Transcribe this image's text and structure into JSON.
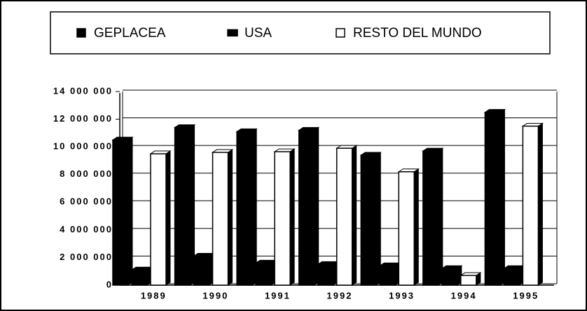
{
  "chart_data": {
    "type": "bar",
    "categories": [
      "1989",
      "1990",
      "1991",
      "1992",
      "1993",
      "1994",
      "1995"
    ],
    "series": [
      {
        "name": "GEPLACEA",
        "color": "#000000",
        "values": [
          10500000,
          11400000,
          11100000,
          11200000,
          9400000,
          9700000,
          12500000
        ]
      },
      {
        "name": "USA",
        "color": "#000000",
        "values": [
          1100000,
          2100000,
          1600000,
          1500000,
          1400000,
          1200000,
          1200000
        ]
      },
      {
        "name": "RESTO DEL MUNDO",
        "color": "#ffffff",
        "values": [
          9500000,
          9600000,
          9650000,
          9900000,
          8200000,
          700000,
          11500000
        ]
      }
    ],
    "ylim": [
      0,
      14000000
    ],
    "yticks": [
      {
        "value": 0,
        "label": "0"
      },
      {
        "value": 2000000,
        "label": "2 000 000"
      },
      {
        "value": 4000000,
        "label": "4 000 000"
      },
      {
        "value": 6000000,
        "label": "6 000 000"
      },
      {
        "value": 8000000,
        "label": "8 000 000"
      },
      {
        "value": 10000000,
        "label": "10 000 000"
      },
      {
        "value": 12000000,
        "label": "12 000 000"
      },
      {
        "value": 14000000,
        "label": "14 000 000"
      }
    ],
    "grid": true,
    "legend": "top"
  }
}
